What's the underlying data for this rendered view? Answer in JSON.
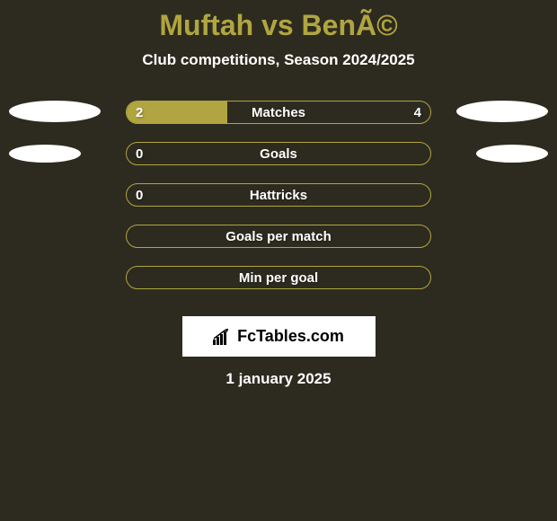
{
  "title": "Muftah vs BenÃ©",
  "subtitle": "Club competitions, Season 2024/2025",
  "stats": [
    {
      "label": "Matches",
      "leftValue": "2",
      "rightValue": "4",
      "leftPercent": 33,
      "rightPercent": 0,
      "showLeftEllipse": true,
      "leftEllipseWidth": 102,
      "leftEllipseHeight": 24,
      "leftEllipseTop": 0,
      "showRightEllipse": true,
      "rightEllipseWidth": 102,
      "rightEllipseHeight": 24,
      "rightEllipseTop": 0
    },
    {
      "label": "Goals",
      "leftValue": "0",
      "rightValue": "",
      "leftPercent": 0,
      "rightPercent": 0,
      "showLeftEllipse": true,
      "leftEllipseWidth": 80,
      "leftEllipseHeight": 20,
      "leftEllipseTop": 3,
      "showRightEllipse": true,
      "rightEllipseWidth": 80,
      "rightEllipseHeight": 20,
      "rightEllipseTop": 3
    },
    {
      "label": "Hattricks",
      "leftValue": "0",
      "rightValue": "",
      "leftPercent": 0,
      "rightPercent": 0,
      "showLeftEllipse": false,
      "showRightEllipse": false
    },
    {
      "label": "Goals per match",
      "leftValue": "",
      "rightValue": "",
      "leftPercent": 0,
      "rightPercent": 0,
      "showLeftEllipse": false,
      "showRightEllipse": false
    },
    {
      "label": "Min per goal",
      "leftValue": "",
      "rightValue": "",
      "leftPercent": 0,
      "rightPercent": 0,
      "showLeftEllipse": false,
      "showRightEllipse": false
    }
  ],
  "logo": "FcTables.com",
  "date": "1 january 2025",
  "colors": {
    "background": "#2d2b1f",
    "accent": "#b0a540",
    "text": "#ffffff",
    "logoBackground": "#ffffff",
    "logoText": "#000000"
  }
}
